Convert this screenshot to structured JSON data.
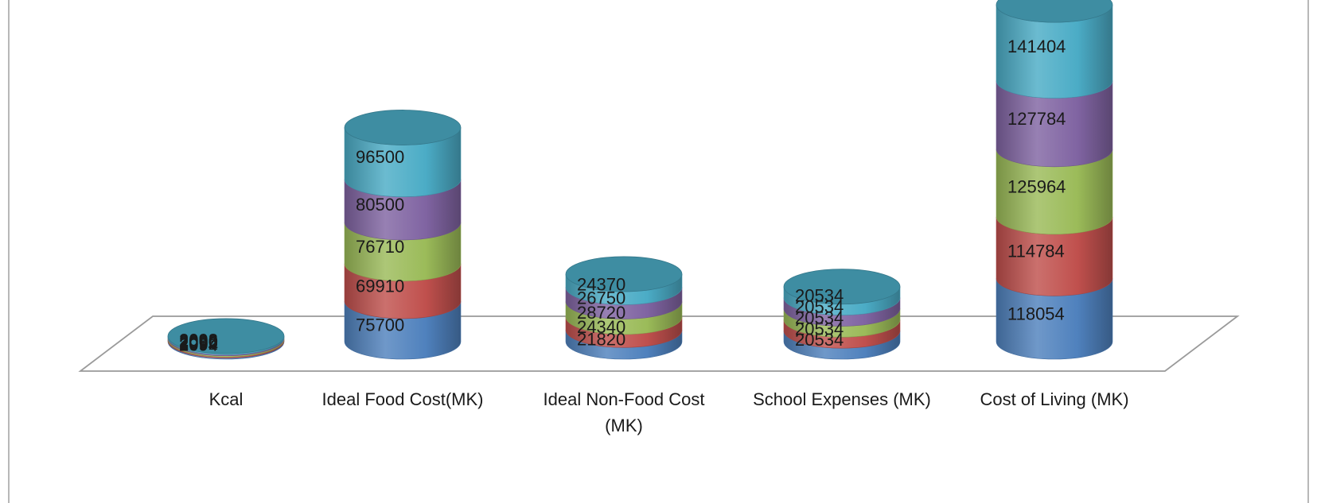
{
  "chart_data": {
    "type": "bar",
    "subtype": "stacked-3d-cylinder",
    "title": "",
    "xlabel": "",
    "ylabel": "",
    "legend": "none",
    "grid": false,
    "categories": [
      [
        "Kcal"
      ],
      [
        "Ideal Food Cost(MK)"
      ],
      [
        "Ideal Non-Food Cost",
        "(MK)"
      ],
      [
        "School Expenses (MK)"
      ],
      [
        "Cost of Living (MK)"
      ]
    ],
    "series": [
      {
        "color": "#4f81bd",
        "values": [
          2094,
          75700,
          21820,
          20534,
          118054
        ]
      },
      {
        "color": "#c0504d",
        "values": [
          2092,
          69910,
          24340,
          20534,
          114784
        ]
      },
      {
        "color": "#9bbb59",
        "values": [
          2096,
          76710,
          28720,
          20534,
          125964
        ]
      },
      {
        "color": "#8064a2",
        "values": [
          2090,
          80500,
          26750,
          20534,
          127784
        ]
      },
      {
        "color": "#4bacc6",
        "values": [
          2098,
          96500,
          24370,
          20534,
          141404
        ]
      }
    ]
  }
}
